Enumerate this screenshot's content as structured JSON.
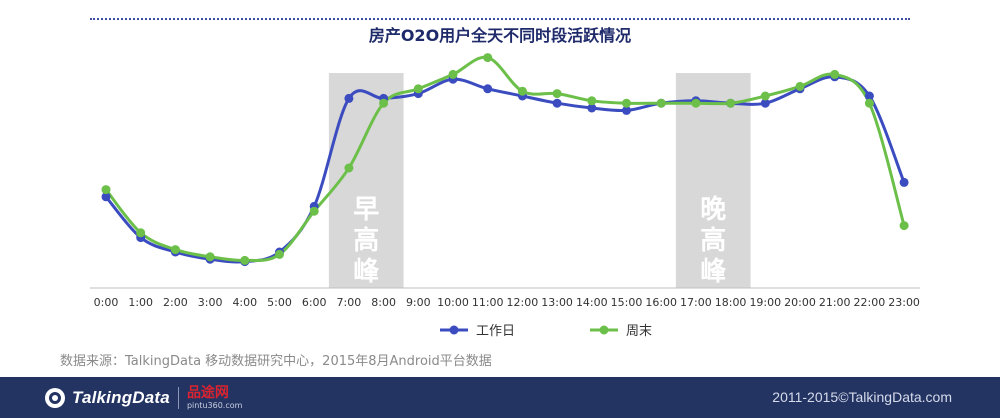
{
  "chart_data": {
    "type": "line",
    "title": "房产O2O用户全天不同时段活跃情况",
    "categories": [
      "0:00",
      "1:00",
      "2:00",
      "3:00",
      "4:00",
      "5:00",
      "6:00",
      "7:00",
      "8:00",
      "9:00",
      "10:00",
      "11:00",
      "12:00",
      "13:00",
      "14:00",
      "15:00",
      "16:00",
      "17:00",
      "18:00",
      "19:00",
      "20:00",
      "21:00",
      "22:00",
      "23:00"
    ],
    "series": [
      {
        "name": "工作日",
        "color": "#3b4cc0",
        "values": [
          38,
          21,
          15,
          12,
          11,
          15,
          34,
          79,
          79,
          81,
          87,
          83,
          80,
          77,
          75,
          74,
          77,
          78,
          77,
          77,
          83,
          88,
          80,
          44
        ]
      },
      {
        "name": "周末",
        "color": "#6cc04a",
        "values": [
          41,
          23,
          16,
          13,
          11.5,
          14,
          32,
          50,
          77,
          83,
          89,
          96,
          82,
          81,
          78,
          77,
          77,
          77,
          77,
          80,
          84,
          89,
          77,
          26
        ]
      }
    ],
    "highlight_bands": [
      {
        "from": "7:00",
        "to": "8:00",
        "label": "早高峰"
      },
      {
        "from": "17:00",
        "to": "18:00",
        "label": "晚高峰"
      }
    ],
    "ylim": [
      0,
      100
    ],
    "grid": false,
    "legend_position": "bottom"
  },
  "source_text": "数据来源：TalkingData 移动数据研究中心，2015年8月Android平台数据",
  "footer": {
    "brand": "TalkingData",
    "partner_name": "品途网",
    "partner_url": "pintu360.com",
    "copyright": "2011-2015©TalkingData.com"
  }
}
